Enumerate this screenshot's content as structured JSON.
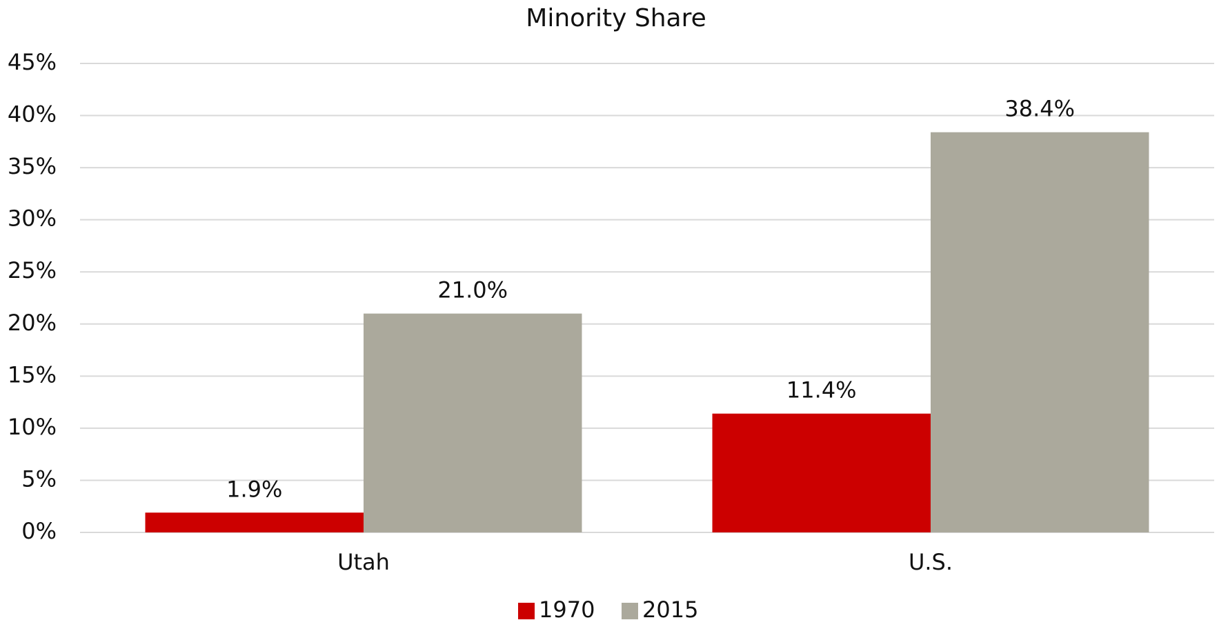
{
  "chart_data": {
    "type": "bar",
    "title": "Minority Share",
    "categories": [
      "Utah",
      "U.S."
    ],
    "series": [
      {
        "name": "1970",
        "color": "#cc0000",
        "values": [
          1.9,
          11.4
        ],
        "value_labels": [
          "1.9%",
          "11.4%"
        ]
      },
      {
        "name": "2015",
        "color": "#aba99c",
        "values": [
          21.0,
          38.4
        ],
        "value_labels": [
          "21.0%",
          "38.4%"
        ]
      }
    ],
    "ylim": [
      0,
      45
    ],
    "yticks": [
      {
        "value": 0,
        "label": "0%"
      },
      {
        "value": 5,
        "label": "5%"
      },
      {
        "value": 10,
        "label": "10%"
      },
      {
        "value": 15,
        "label": "15%"
      },
      {
        "value": 20,
        "label": "20%"
      },
      {
        "value": 25,
        "label": "25%"
      },
      {
        "value": 30,
        "label": "30%"
      },
      {
        "value": 35,
        "label": "35%"
      },
      {
        "value": 40,
        "label": "40%"
      },
      {
        "value": 45,
        "label": "45%"
      }
    ],
    "grid": true,
    "legend": "bottom"
  }
}
